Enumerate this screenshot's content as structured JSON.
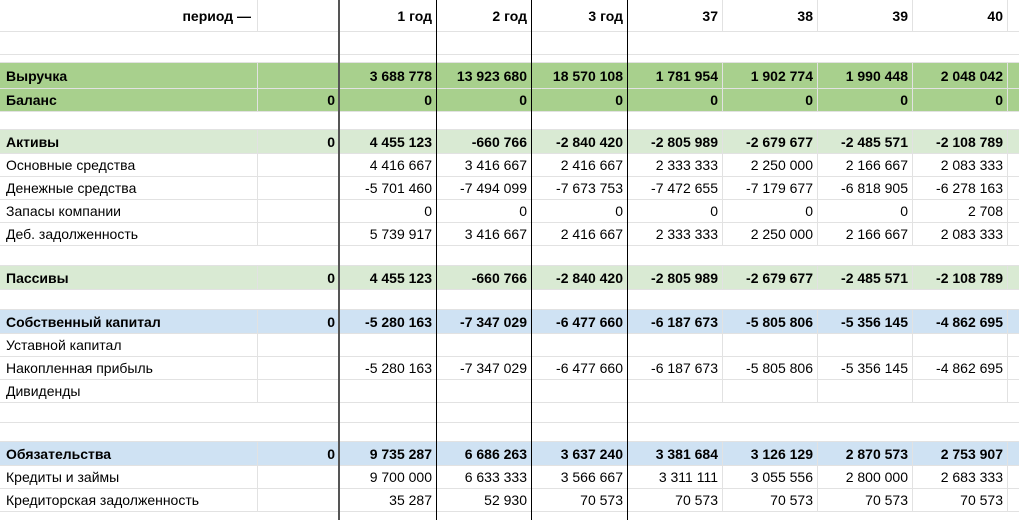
{
  "header": {
    "period_label": "период —",
    "periods": [
      "1 год",
      "2 год",
      "3 год",
      "37",
      "38",
      "39",
      "40"
    ]
  },
  "rows": [
    {
      "label": "Выручка",
      "b": "",
      "values": [
        "3 688 778",
        "13 923 680",
        "18 570 108",
        "1 781 954",
        "1 902 774",
        "1 990 448",
        "2 048 042"
      ]
    },
    {
      "label": "Баланс",
      "b": "0",
      "values": [
        "0",
        "0",
        "0",
        "0",
        "0",
        "0",
        "0"
      ]
    },
    {
      "label": "Активы",
      "b": "0",
      "values": [
        "4 455 123",
        "-660 766",
        "-2 840 420",
        "-2 805 989",
        "-2 679 677",
        "-2 485 571",
        "-2 108 789"
      ]
    },
    {
      "label": "Основные средства",
      "b": "",
      "values": [
        "4 416 667",
        "3 416 667",
        "2 416 667",
        "2 333 333",
        "2 250 000",
        "2 166 667",
        "2 083 333"
      ]
    },
    {
      "label": "Денежные средства",
      "b": "",
      "values": [
        "-5 701 460",
        "-7 494 099",
        "-7 673 753",
        "-7 472 655",
        "-7 179 677",
        "-6 818 905",
        "-6 278 163"
      ]
    },
    {
      "label": "Запасы компании",
      "b": "",
      "values": [
        "0",
        "0",
        "0",
        "0",
        "0",
        "0",
        "2 708"
      ]
    },
    {
      "label": "Деб. задолженность",
      "b": "",
      "values": [
        "5 739 917",
        "3 416 667",
        "2 416 667",
        "2 333 333",
        "2 250 000",
        "2 166 667",
        "2 083 333"
      ]
    },
    {
      "label": "Пассивы",
      "b": "0",
      "values": [
        "4 455 123",
        "-660 766",
        "-2 840 420",
        "-2 805 989",
        "-2 679 677",
        "-2 485 571",
        "-2 108 789"
      ]
    },
    {
      "label": "Собственный капитал",
      "b": "0",
      "values": [
        "-5 280 163",
        "-7 347 029",
        "-6 477 660",
        "-6 187 673",
        "-5 805 806",
        "-5 356 145",
        "-4 862 695"
      ]
    },
    {
      "label": "Уставной капитал",
      "b": "",
      "values": [
        "",
        "",
        "",
        "",
        "",
        "",
        ""
      ]
    },
    {
      "label": "Накопленная прибыль",
      "b": "",
      "values": [
        "-5 280 163",
        "-7 347 029",
        "-6 477 660",
        "-6 187 673",
        "-5 805 806",
        "-5 356 145",
        "-4 862 695"
      ]
    },
    {
      "label": "Дивиденды",
      "b": "",
      "values": [
        "",
        "",
        "",
        "",
        "",
        "",
        ""
      ]
    },
    {
      "label": "Обязательства",
      "b": "0",
      "values": [
        "9 735 287",
        "6 686 263",
        "3 637 240",
        "3 381 684",
        "3 126 129",
        "2 870 573",
        "2 753 907"
      ]
    },
    {
      "label": "Кредиты и займы",
      "b": "",
      "values": [
        "9 700 000",
        "6 633 333",
        "3 566 667",
        "3 311 111",
        "3 055 556",
        "2 800 000",
        "2 683 333"
      ]
    },
    {
      "label": "Кредиторская задолженность",
      "b": "",
      "values": [
        "35 287",
        "52 930",
        "70 573",
        "70 573",
        "70 573",
        "70 573",
        "70 573"
      ]
    }
  ]
}
